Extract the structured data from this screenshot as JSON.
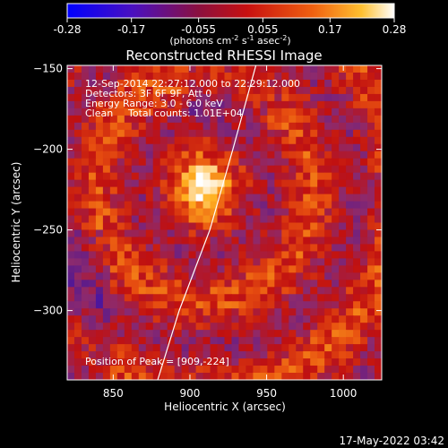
{
  "colorbar": {
    "ticks": [
      "-0.28",
      "-0.17",
      "-0.055",
      "0.055",
      "0.17",
      "0.28"
    ],
    "min": -0.28,
    "max": 0.28,
    "units_main": "(photons cm",
    "units_sup1": "-2",
    "units_mid": " s",
    "units_sup2": "-1",
    "units_tail": " asec",
    "units_sup3": "-2",
    "units_end": ")"
  },
  "chart_data": {
    "type": "heatmap",
    "title": "Reconstructed RHESSI Image",
    "xlabel": "Heliocentric X (arcsec)",
    "ylabel": "Heliocentric Y (arcsec)",
    "xlim": [
      820,
      1025
    ],
    "ylim": [
      -343,
      -148
    ],
    "xticks": [
      850,
      900,
      950,
      1000
    ],
    "yticks": [
      -150,
      -200,
      -250,
      -300
    ],
    "peak": {
      "x": 909,
      "y": -224
    },
    "limb": [
      [
        943,
        -148
      ],
      [
        928,
        -200
      ],
      [
        913,
        -250
      ],
      [
        893,
        -300
      ],
      [
        879,
        -343
      ]
    ],
    "colormap": [
      "#0000ff",
      "#5a1a8c",
      "#8c2a6e",
      "#c01010",
      "#e85010",
      "#ffb020",
      "#ffffff"
    ]
  },
  "annotations": {
    "time_range": "12-Sep-2014 22:27:12.000 to 22:29:12.000",
    "detectors": "Detectors: 3F 6F 9F, Att 0",
    "energy": "Energy Range: 3.0 - 6.0 keV",
    "method": "Clean",
    "counts": "Total counts: 1.01E+04",
    "peak_text": "Position of Peak = [909,-224]"
  },
  "footer": {
    "timestamp": "17-May-2022 03:42"
  }
}
